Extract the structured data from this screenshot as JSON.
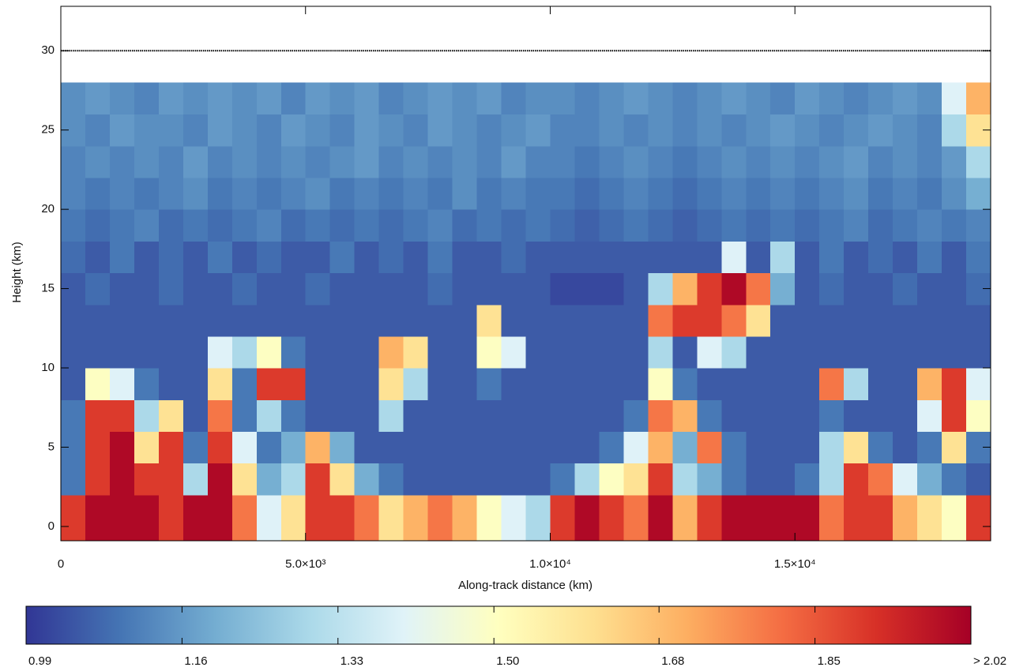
{
  "chart_data": {
    "type": "heatmap",
    "xlabel": "Along-track distance (km)",
    "ylabel": "Height (km)",
    "xlim": [
      0,
      19000
    ],
    "ylim": [
      -0.9,
      32.8
    ],
    "xticks": [
      0,
      {
        "value": 5000,
        "label": "5.0×10³"
      },
      {
        "value": 10000,
        "label": "1.0×10⁴"
      },
      {
        "value": 15000,
        "label": "1.5×10⁴"
      }
    ],
    "yticks": [
      0,
      5,
      10,
      15,
      20,
      25,
      30
    ],
    "hline": 30,
    "xbins": [
      0,
      500,
      1000,
      1500,
      2000,
      2500,
      3000,
      3500,
      4000,
      4500,
      5000,
      5500,
      6000,
      6500,
      7000,
      7500,
      8000,
      8500,
      9000,
      9500,
      10000,
      10500,
      11000,
      11500,
      12000,
      12500,
      13000,
      13500,
      14000,
      14500,
      15000,
      15500,
      16000,
      16500,
      17000,
      17500,
      18000,
      18500,
      19000
    ],
    "ybins": [
      -0.9,
      2,
      4,
      6,
      8,
      10,
      12,
      14,
      16,
      18,
      20,
      22,
      24,
      26,
      28
    ],
    "z": [
      [
        1.9,
        2.0,
        2.0,
        2.0,
        1.9,
        2.0,
        2.0,
        1.8,
        1.4,
        1.6,
        1.9,
        1.9,
        1.8,
        1.6,
        1.7,
        1.8,
        1.7,
        1.5,
        1.4,
        1.3,
        1.9,
        2.0,
        1.9,
        1.8,
        2.0,
        1.7,
        1.9,
        2.0,
        2.0,
        2.0,
        2.0,
        1.8,
        1.9,
        1.9,
        1.7,
        1.6,
        1.5,
        1.9
      ],
      [
        1.1,
        1.9,
        2.0,
        1.9,
        1.9,
        1.3,
        2.0,
        1.6,
        1.2,
        1.3,
        1.9,
        1.6,
        1.2,
        1.1,
        1.05,
        1.05,
        1.05,
        1.05,
        1.05,
        1.05,
        1.1,
        1.3,
        1.5,
        1.6,
        1.9,
        1.3,
        1.2,
        1.1,
        1.05,
        1.05,
        1.1,
        1.3,
        1.9,
        1.8,
        1.4,
        1.2,
        1.1,
        1.05
      ],
      [
        1.1,
        1.9,
        2.0,
        1.6,
        1.9,
        1.1,
        1.9,
        1.4,
        1.1,
        1.2,
        1.7,
        1.2,
        1.05,
        1.05,
        1.05,
        1.05,
        1.05,
        1.05,
        1.05,
        1.05,
        1.05,
        1.05,
        1.1,
        1.4,
        1.7,
        1.2,
        1.8,
        1.1,
        1.05,
        1.05,
        1.05,
        1.3,
        1.6,
        1.1,
        1.05,
        1.1,
        1.6,
        1.1
      ],
      [
        1.1,
        1.9,
        1.9,
        1.3,
        1.6,
        1.05,
        1.8,
        1.1,
        1.3,
        1.1,
        1.05,
        1.05,
        1.05,
        1.3,
        1.05,
        1.05,
        1.05,
        1.05,
        1.05,
        1.05,
        1.05,
        1.05,
        1.05,
        1.1,
        1.8,
        1.7,
        1.1,
        1.05,
        1.05,
        1.05,
        1.05,
        1.1,
        1.05,
        1.05,
        1.05,
        1.4,
        1.9,
        1.5
      ],
      [
        1.05,
        1.5,
        1.4,
        1.1,
        1.05,
        1.05,
        1.6,
        1.1,
        1.9,
        1.9,
        1.05,
        1.05,
        1.05,
        1.6,
        1.3,
        1.05,
        1.05,
        1.1,
        1.05,
        1.05,
        1.05,
        1.05,
        1.05,
        1.05,
        1.5,
        1.1,
        1.05,
        1.05,
        1.05,
        1.05,
        1.05,
        1.8,
        1.3,
        1.05,
        1.05,
        1.7,
        1.9,
        1.4
      ],
      [
        1.05,
        1.05,
        1.05,
        1.05,
        1.05,
        1.05,
        1.4,
        1.3,
        1.5,
        1.1,
        1.05,
        1.05,
        1.05,
        1.7,
        1.6,
        1.05,
        1.05,
        1.5,
        1.4,
        1.05,
        1.05,
        1.05,
        1.05,
        1.05,
        1.3,
        1.05,
        1.4,
        1.3,
        1.05,
        1.05,
        1.05,
        1.05,
        1.05,
        1.05,
        1.05,
        1.05,
        1.05,
        1.05
      ],
      [
        1.05,
        1.05,
        1.05,
        1.05,
        1.05,
        1.05,
        1.05,
        1.05,
        1.05,
        1.05,
        1.05,
        1.05,
        1.05,
        1.05,
        1.05,
        1.05,
        1.05,
        1.6,
        1.05,
        1.05,
        1.05,
        1.05,
        1.05,
        1.05,
        1.8,
        1.9,
        1.9,
        1.8,
        1.6,
        1.05,
        1.05,
        1.05,
        1.05,
        1.05,
        1.05,
        1.05,
        1.05,
        1.05
      ],
      [
        1.05,
        1.08,
        1.05,
        1.05,
        1.08,
        1.05,
        1.05,
        1.08,
        1.05,
        1.05,
        1.08,
        1.05,
        1.05,
        1.05,
        1.05,
        1.08,
        1.05,
        1.05,
        1.05,
        1.05,
        1.02,
        1.02,
        1.02,
        1.05,
        1.3,
        1.7,
        1.9,
        2.0,
        1.8,
        1.2,
        1.05,
        1.08,
        1.05,
        1.05,
        1.08,
        1.05,
        1.05,
        1.08
      ],
      [
        1.08,
        1.05,
        1.1,
        1.05,
        1.08,
        1.05,
        1.1,
        1.05,
        1.08,
        1.05,
        1.05,
        1.1,
        1.05,
        1.08,
        1.05,
        1.1,
        1.05,
        1.05,
        1.08,
        1.05,
        1.05,
        1.05,
        1.05,
        1.05,
        1.05,
        1.05,
        1.05,
        1.4,
        1.05,
        1.3,
        1.05,
        1.1,
        1.05,
        1.08,
        1.05,
        1.1,
        1.05,
        1.1
      ],
      [
        1.1,
        1.08,
        1.1,
        1.12,
        1.08,
        1.1,
        1.08,
        1.1,
        1.12,
        1.08,
        1.1,
        1.08,
        1.1,
        1.08,
        1.1,
        1.12,
        1.08,
        1.1,
        1.08,
        1.1,
        1.08,
        1.06,
        1.08,
        1.1,
        1.08,
        1.06,
        1.08,
        1.1,
        1.08,
        1.1,
        1.08,
        1.1,
        1.12,
        1.08,
        1.1,
        1.12,
        1.1,
        1.12
      ],
      [
        1.12,
        1.1,
        1.12,
        1.1,
        1.12,
        1.14,
        1.1,
        1.12,
        1.1,
        1.12,
        1.14,
        1.1,
        1.12,
        1.1,
        1.12,
        1.1,
        1.14,
        1.1,
        1.12,
        1.1,
        1.1,
        1.08,
        1.1,
        1.12,
        1.1,
        1.08,
        1.1,
        1.12,
        1.1,
        1.12,
        1.1,
        1.12,
        1.14,
        1.1,
        1.12,
        1.1,
        1.14,
        1.2
      ],
      [
        1.12,
        1.14,
        1.12,
        1.14,
        1.12,
        1.16,
        1.12,
        1.14,
        1.12,
        1.14,
        1.12,
        1.14,
        1.16,
        1.12,
        1.14,
        1.12,
        1.14,
        1.12,
        1.16,
        1.12,
        1.12,
        1.1,
        1.12,
        1.14,
        1.12,
        1.1,
        1.12,
        1.14,
        1.12,
        1.14,
        1.12,
        1.14,
        1.16,
        1.12,
        1.14,
        1.12,
        1.16,
        1.3
      ],
      [
        1.14,
        1.12,
        1.16,
        1.14,
        1.14,
        1.12,
        1.16,
        1.14,
        1.12,
        1.16,
        1.14,
        1.12,
        1.16,
        1.14,
        1.12,
        1.16,
        1.14,
        1.12,
        1.14,
        1.16,
        1.12,
        1.12,
        1.14,
        1.12,
        1.14,
        1.12,
        1.14,
        1.12,
        1.14,
        1.16,
        1.14,
        1.12,
        1.14,
        1.16,
        1.14,
        1.12,
        1.3,
        1.6
      ],
      [
        1.14,
        1.16,
        1.14,
        1.12,
        1.16,
        1.14,
        1.16,
        1.14,
        1.16,
        1.12,
        1.16,
        1.14,
        1.16,
        1.12,
        1.14,
        1.16,
        1.14,
        1.16,
        1.12,
        1.14,
        1.14,
        1.12,
        1.14,
        1.16,
        1.14,
        1.12,
        1.14,
        1.16,
        1.14,
        1.12,
        1.16,
        1.14,
        1.12,
        1.14,
        1.16,
        1.14,
        1.4,
        1.7
      ]
    ],
    "colorbar": {
      "clim": [
        0.99,
        2.02
      ],
      "ticks": [
        0.99,
        1.16,
        1.33,
        {
          "value": 1.5,
          "label": "1.50"
        },
        1.68,
        1.85,
        {
          "value": 2.02,
          "label": "> 2.02"
        }
      ],
      "colormap": [
        "#313695",
        "#4575b4",
        "#74add1",
        "#abd9e9",
        "#e0f3f8",
        "#ffffbf",
        "#fee090",
        "#fdae61",
        "#f46d43",
        "#d73027",
        "#a50026"
      ]
    }
  }
}
